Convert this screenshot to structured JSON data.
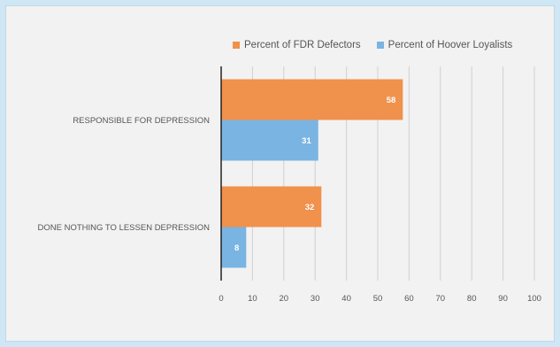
{
  "colors": {
    "fdr": "#F0914C",
    "hoover": "#7AB4E2",
    "grid": "#d0d0d0",
    "axis": "#222222"
  },
  "chart_data": {
    "type": "bar",
    "orientation": "horizontal",
    "title": "",
    "xlabel": "",
    "ylabel": "",
    "categories": [
      "RESPONSIBLE FOR DEPRESSION",
      "DONE NOTHING TO LESSEN DEPRESSION"
    ],
    "series": [
      {
        "name": "Percent of FDR Defectors",
        "values": [
          58,
          32
        ],
        "color": "#F0914C"
      },
      {
        "name": "Percent of Hoover Loyalists",
        "values": [
          31,
          8
        ],
        "color": "#7AB4E2"
      }
    ],
    "xlim": [
      0,
      100
    ],
    "xticks": [
      0,
      10,
      20,
      30,
      40,
      50,
      60,
      70,
      80,
      90,
      100
    ],
    "grid": true,
    "legend_position": "top-right"
  }
}
